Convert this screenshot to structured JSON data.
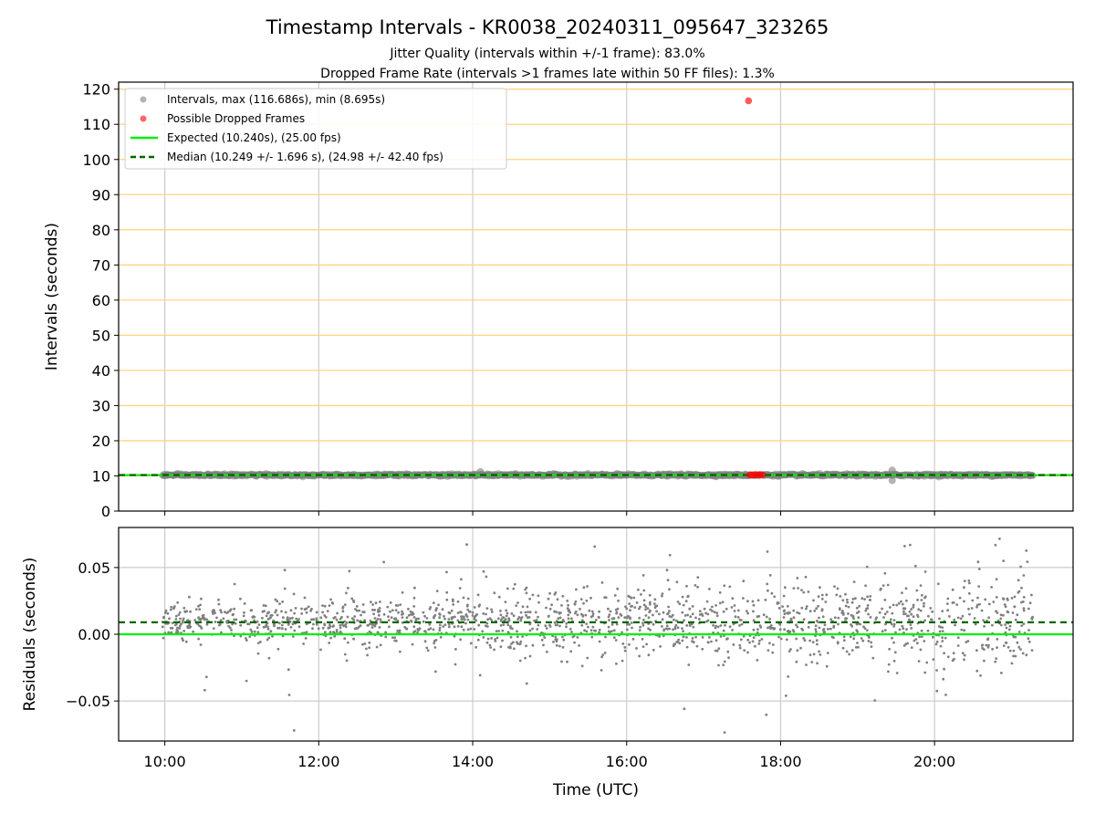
{
  "chart_data": {
    "type": "scatter",
    "title": "Timestamp Intervals - KR0038_20240311_095647_323265",
    "subtitles": [
      "Jitter Quality (intervals within +/-1 frame): 83.0%",
      "Dropped Frame Rate (intervals >1 frames late within 50 FF files): 1.3%"
    ],
    "xlabel": "Time (UTC)",
    "x_ticks": [
      "10:00",
      "12:00",
      "14:00",
      "16:00",
      "18:00",
      "20:00"
    ],
    "x_range_hours": [
      9.4,
      21.8
    ],
    "data_x_range_hours": [
      9.97,
      21.28
    ],
    "colors": {
      "intervals": "#808080",
      "dropped": "#ff0000",
      "expected": "#00ee00",
      "median": "#006400",
      "y_grid_top": "#ffd580",
      "grid": "#cccccc"
    },
    "top_panel": {
      "ylabel": "Intervals (seconds)",
      "ylim": [
        0,
        122
      ],
      "y_ticks": [
        0,
        10,
        20,
        30,
        40,
        50,
        60,
        70,
        80,
        90,
        100,
        110,
        120
      ],
      "y_grid": true,
      "legend_position": "upper-left",
      "legend": [
        "Intervals, max (116.686s), min (8.695s)",
        "Possible Dropped Frames",
        "Expected (10.240s), (25.00 fps)",
        "Median (10.249 +/- 1.696 s), (24.98 +/- 42.40 fps)"
      ],
      "expected_interval_s": 10.24,
      "median_interval_s": 10.249,
      "max_interval_s": 116.686,
      "min_interval_s": 8.695,
      "dropped_points": [
        {
          "t": "17:35",
          "y": 116.686
        },
        {
          "t": "17:36",
          "y": 10.3
        },
        {
          "t": "17:38",
          "y": 10.3
        },
        {
          "t": "17:40",
          "y": 10.3
        },
        {
          "t": "17:42",
          "y": 10.3
        },
        {
          "t": "17:44",
          "y": 10.3
        },
        {
          "t": "17:46",
          "y": 10.3
        }
      ]
    },
    "bottom_panel": {
      "ylabel": "Residuals (seconds)",
      "ylim": [
        -0.08,
        0.08
      ],
      "y_ticks": [
        "−0.05",
        "0.00",
        "0.05"
      ],
      "y_tick_values": [
        -0.05,
        0.0,
        0.05
      ],
      "expected_residual": 0.0,
      "median_residual": 0.009
    }
  }
}
